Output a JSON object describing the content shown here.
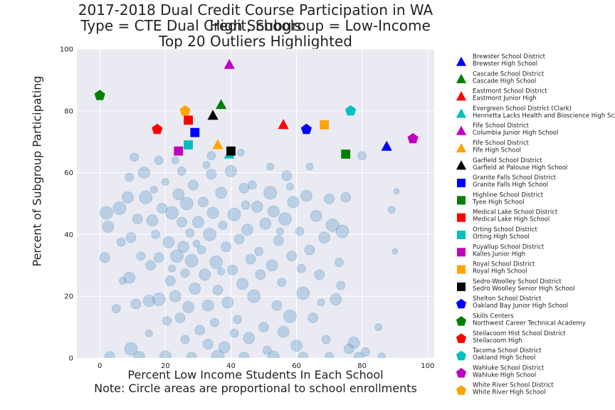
{
  "chart_data": {
    "type": "scatter",
    "title": [
      "2017-2018 Dual Credit Course Participation in WA High Schools",
      "Type = CTE Dual Credit, Subgroup = Low-Income",
      "Top 20 Outliers Highlighted"
    ],
    "xlabel": [
      "Percent Low Income Students In Each School",
      "Note: Circle areas are proportional to school enrollments"
    ],
    "ylabel": "Percent of Subgroup Participating",
    "xlim": [
      -7,
      102
    ],
    "ylim": [
      0,
      100
    ],
    "xticks": [
      "0",
      "20",
      "40",
      "60",
      "80",
      "100"
    ],
    "yticks": [
      "0",
      "20",
      "40",
      "60",
      "80",
      "100"
    ],
    "grid": true,
    "background": "#eaeaf2",
    "bubble_color": "#4c92c3",
    "legend_position": "outside-right",
    "highlighted": [
      {
        "district": "Brewster School District",
        "school": "Brewster High School",
        "marker": "triangle",
        "color": "#0000ff",
        "x": 87.5,
        "y": 68.5
      },
      {
        "district": "Cascade School District",
        "school": "Cascade High School",
        "marker": "triangle",
        "color": "#008000",
        "x": 37.0,
        "y": 82.0
      },
      {
        "district": "Eastmont School District",
        "school": "Eastmont Junior High",
        "marker": "triangle",
        "color": "#ff0000",
        "x": 56.0,
        "y": 75.5
      },
      {
        "district": "Evergreen School District (Clark)",
        "school": "Henrietta Lacks Health and Bioscience High School",
        "marker": "triangle",
        "color": "#00bfbf",
        "x": 39.5,
        "y": 66.0
      },
      {
        "district": "Fife School District",
        "school": "Columbia Junior High School",
        "marker": "triangle",
        "color": "#bf00bf",
        "x": 39.5,
        "y": 95.0
      },
      {
        "district": "Fife School District",
        "school": "Fife High School",
        "marker": "triangle",
        "color": "#ffa500",
        "x": 36.0,
        "y": 69.0
      },
      {
        "district": "Garfield School District",
        "school": "Garfield at Palouse High School",
        "marker": "triangle",
        "color": "#000000",
        "x": 34.5,
        "y": 78.5
      },
      {
        "district": "Granite Falls School District",
        "school": "Granite Falls High School",
        "marker": "square",
        "color": "#0000ff",
        "x": 29.0,
        "y": 73.0
      },
      {
        "district": "Highline School District",
        "school": "Tyee High School",
        "marker": "square",
        "color": "#008000",
        "x": 75.0,
        "y": 66.0
      },
      {
        "district": "Medical Lake School District",
        "school": "Medical Lake High School",
        "marker": "square",
        "color": "#ff0000",
        "x": 27.0,
        "y": 77.0
      },
      {
        "district": "Orting School District",
        "school": "Orting High School",
        "marker": "square",
        "color": "#00bfbf",
        "x": 27.0,
        "y": 69.0
      },
      {
        "district": "Puyallup School District",
        "school": "Kalles Junior High",
        "marker": "square",
        "color": "#bf00bf",
        "x": 24.0,
        "y": 67.0
      },
      {
        "district": "Royal School District",
        "school": "Royal High School",
        "marker": "square",
        "color": "#ffa500",
        "x": 68.5,
        "y": 75.5
      },
      {
        "district": "Sedro-Woolley School District",
        "school": "Sedro Woolley Senior High School",
        "marker": "square",
        "color": "#000000",
        "x": 40.0,
        "y": 67.0
      },
      {
        "district": "Shelton School District",
        "school": "Oakland Bay Junior High School",
        "marker": "pentagon",
        "color": "#0000ff",
        "x": 63.0,
        "y": 74.0
      },
      {
        "district": "Skills Centers",
        "school": "Northwest Career   Technical Academy",
        "marker": "pentagon",
        "color": "#008000",
        "x": 0.0,
        "y": 85.0
      },
      {
        "district": "Steilacoom Hist School District",
        "school": "Steilacoom High",
        "marker": "pentagon",
        "color": "#ff0000",
        "x": 17.5,
        "y": 74.0
      },
      {
        "district": "Tacoma School District",
        "school": "Oakland High School",
        "marker": "pentagon",
        "color": "#00bfbf",
        "x": 76.5,
        "y": 80.0
      },
      {
        "district": "Wahluke School District",
        "school": "Wahluke High School",
        "marker": "pentagon",
        "color": "#bf00bf",
        "x": 95.5,
        "y": 71.0
      },
      {
        "district": "White River School District",
        "school": "White River High School",
        "marker": "pentagon",
        "color": "#ffa500",
        "x": 26.0,
        "y": 80.0
      }
    ],
    "background_points": [
      {
        "x": 2.0,
        "y": 47.0,
        "s": 9
      },
      {
        "x": 2.5,
        "y": 42.5,
        "s": 8
      },
      {
        "x": 1.5,
        "y": 32.5,
        "s": 7
      },
      {
        "x": 6.0,
        "y": 48.5,
        "s": 9
      },
      {
        "x": 6.5,
        "y": 37.5,
        "s": 6
      },
      {
        "x": 7.0,
        "y": 25.0,
        "s": 5
      },
      {
        "x": 8.5,
        "y": 52.0,
        "s": 8
      },
      {
        "x": 9.0,
        "y": 58.5,
        "s": 6
      },
      {
        "x": 9.5,
        "y": 39.0,
        "s": 7
      },
      {
        "x": 9.0,
        "y": 26.0,
        "s": 8
      },
      {
        "x": 9.5,
        "y": 3.0,
        "s": 9
      },
      {
        "x": 10.5,
        "y": 65.0,
        "s": 6
      },
      {
        "x": 11.5,
        "y": 45.0,
        "s": 7
      },
      {
        "x": 12.5,
        "y": 33.0,
        "s": 6
      },
      {
        "x": 13.5,
        "y": 60.0,
        "s": 8
      },
      {
        "x": 14.0,
        "y": 52.0,
        "s": 9
      },
      {
        "x": 15.0,
        "y": 18.5,
        "s": 8
      },
      {
        "x": 15.5,
        "y": 30.0,
        "s": 7
      },
      {
        "x": 16.0,
        "y": 44.5,
        "s": 8
      },
      {
        "x": 17.0,
        "y": 40.0,
        "s": 6
      },
      {
        "x": 18.0,
        "y": 19.0,
        "s": 9
      },
      {
        "x": 18.0,
        "y": 32.5,
        "s": 7
      },
      {
        "x": 19.0,
        "y": 48.5,
        "s": 7
      },
      {
        "x": 20.0,
        "y": 57.0,
        "s": 5
      },
      {
        "x": 20.5,
        "y": 12.0,
        "s": 6
      },
      {
        "x": 21.0,
        "y": 37.5,
        "s": 8
      },
      {
        "x": 21.5,
        "y": 25.0,
        "s": 7
      },
      {
        "x": 22.0,
        "y": 47.0,
        "s": 9
      },
      {
        "x": 23.0,
        "y": 20.0,
        "s": 8
      },
      {
        "x": 23.5,
        "y": 33.0,
        "s": 9
      },
      {
        "x": 24.0,
        "y": 53.0,
        "s": 8
      },
      {
        "x": 24.5,
        "y": 13.0,
        "s": 7
      },
      {
        "x": 25.0,
        "y": 44.0,
        "s": 7
      },
      {
        "x": 25.5,
        "y": 36.0,
        "s": 8
      },
      {
        "x": 26.0,
        "y": 27.5,
        "s": 6
      },
      {
        "x": 26.5,
        "y": 50.0,
        "s": 9
      },
      {
        "x": 27.0,
        "y": 16.5,
        "s": 8
      },
      {
        "x": 27.5,
        "y": 40.5,
        "s": 6
      },
      {
        "x": 28.0,
        "y": 31.5,
        "s": 9
      },
      {
        "x": 28.5,
        "y": 56.0,
        "s": 7
      },
      {
        "x": 29.0,
        "y": 22.5,
        "s": 8
      },
      {
        "x": 30.0,
        "y": 44.0,
        "s": 8
      },
      {
        "x": 30.5,
        "y": 9.0,
        "s": 7
      },
      {
        "x": 31.0,
        "y": 35.0,
        "s": 6
      },
      {
        "x": 31.5,
        "y": 50.5,
        "s": 7
      },
      {
        "x": 32.0,
        "y": 27.0,
        "s": 8
      },
      {
        "x": 33.0,
        "y": 17.0,
        "s": 8
      },
      {
        "x": 33.5,
        "y": 40.0,
        "s": 9
      },
      {
        "x": 34.0,
        "y": 59.5,
        "s": 7
      },
      {
        "x": 34.5,
        "y": 47.0,
        "s": 8
      },
      {
        "x": 35.0,
        "y": 11.5,
        "s": 6
      },
      {
        "x": 35.5,
        "y": 31.0,
        "s": 9
      },
      {
        "x": 36.0,
        "y": 22.0,
        "s": 7
      },
      {
        "x": 37.0,
        "y": 53.5,
        "s": 8
      },
      {
        "x": 37.5,
        "y": 43.0,
        "s": 6
      },
      {
        "x": 38.0,
        "y": 3.5,
        "s": 8
      },
      {
        "x": 38.5,
        "y": 36.0,
        "s": 7
      },
      {
        "x": 39.0,
        "y": 18.0,
        "s": 8
      },
      {
        "x": 40.0,
        "y": 60.5,
        "s": 8
      },
      {
        "x": 40.5,
        "y": 28.5,
        "s": 7
      },
      {
        "x": 41.0,
        "y": 46.5,
        "s": 9
      },
      {
        "x": 42.0,
        "y": 12.5,
        "s": 6
      },
      {
        "x": 42.5,
        "y": 38.5,
        "s": 7
      },
      {
        "x": 43.5,
        "y": 24.0,
        "s": 8
      },
      {
        "x": 44.0,
        "y": 55.0,
        "s": 7
      },
      {
        "x": 45.0,
        "y": 41.5,
        "s": 8
      },
      {
        "x": 45.5,
        "y": 6.5,
        "s": 8
      },
      {
        "x": 46.0,
        "y": 32.0,
        "s": 7
      },
      {
        "x": 47.0,
        "y": 20.0,
        "s": 9
      },
      {
        "x": 48.0,
        "y": 49.0,
        "s": 8
      },
      {
        "x": 48.5,
        "y": 34.5,
        "s": 6
      },
      {
        "x": 49.0,
        "y": 27.0,
        "s": 7
      },
      {
        "x": 50.0,
        "y": 10.0,
        "s": 7
      },
      {
        "x": 50.5,
        "y": 43.5,
        "s": 8
      },
      {
        "x": 51.0,
        "y": 2.5,
        "s": 6
      },
      {
        "x": 52.0,
        "y": 53.5,
        "s": 9
      },
      {
        "x": 52.5,
        "y": 30.0,
        "s": 8
      },
      {
        "x": 53.0,
        "y": 47.5,
        "s": 8
      },
      {
        "x": 54.0,
        "y": 17.0,
        "s": 7
      },
      {
        "x": 54.5,
        "y": 38.0,
        "s": 7
      },
      {
        "x": 55.5,
        "y": 24.5,
        "s": 6
      },
      {
        "x": 56.0,
        "y": 8.5,
        "s": 8
      },
      {
        "x": 56.5,
        "y": 45.0,
        "s": 9
      },
      {
        "x": 57.0,
        "y": 59.0,
        "s": 7
      },
      {
        "x": 58.0,
        "y": 13.5,
        "s": 9
      },
      {
        "x": 58.5,
        "y": 33.0,
        "s": 7
      },
      {
        "x": 59.0,
        "y": 50.5,
        "s": 8
      },
      {
        "x": 60.0,
        "y": 4.0,
        "s": 8
      },
      {
        "x": 61.0,
        "y": 41.0,
        "s": 6
      },
      {
        "x": 62.0,
        "y": 21.0,
        "s": 9
      },
      {
        "x": 63.0,
        "y": 52.5,
        "s": 8
      },
      {
        "x": 64.0,
        "y": 35.0,
        "s": 7
      },
      {
        "x": 65.0,
        "y": 13.0,
        "s": 7
      },
      {
        "x": 66.0,
        "y": 46.0,
        "s": 8
      },
      {
        "x": 67.0,
        "y": 27.0,
        "s": 7
      },
      {
        "x": 68.5,
        "y": 39.0,
        "s": 8
      },
      {
        "x": 69.0,
        "y": 6.0,
        "s": 6
      },
      {
        "x": 70.0,
        "y": 51.5,
        "s": 7
      },
      {
        "x": 71.0,
        "y": 43.0,
        "s": 9
      },
      {
        "x": 72.0,
        "y": 19.0,
        "s": 8
      },
      {
        "x": 73.0,
        "y": 31.0,
        "s": 6
      },
      {
        "x": 74.0,
        "y": 41.0,
        "s": 9
      },
      {
        "x": 75.0,
        "y": 52.0,
        "s": 7
      },
      {
        "x": 76.0,
        "y": 3.0,
        "s": 7
      },
      {
        "x": 77.5,
        "y": 5.0,
        "s": 8
      },
      {
        "x": 80.0,
        "y": 65.5,
        "s": 6
      },
      {
        "x": 81.0,
        "y": 2.0,
        "s": 6
      },
      {
        "x": 85.0,
        "y": 10.0,
        "s": 5
      },
      {
        "x": 89.0,
        "y": 48.0,
        "s": 5
      },
      {
        "x": 90.5,
        "y": 54.0,
        "s": 4
      },
      {
        "x": 90.0,
        "y": 34.5,
        "s": 4
      },
      {
        "x": 18.0,
        "y": 64.0,
        "s": 6
      },
      {
        "x": 23.0,
        "y": 64.0,
        "s": 5
      },
      {
        "x": 34.0,
        "y": 65.5,
        "s": 6
      },
      {
        "x": 43.0,
        "y": 66.5,
        "s": 5
      },
      {
        "x": 52.0,
        "y": 62.0,
        "s": 5
      },
      {
        "x": 64.0,
        "y": 62.0,
        "s": 5
      },
      {
        "x": 3.0,
        "y": 0.5,
        "s": 7
      },
      {
        "x": 12.0,
        "y": 0.3,
        "s": 8
      },
      {
        "x": 20.0,
        "y": 0.5,
        "s": 8
      },
      {
        "x": 28.0,
        "y": 0.3,
        "s": 7
      },
      {
        "x": 36.0,
        "y": 0.5,
        "s": 9
      },
      {
        "x": 44.0,
        "y": 0.3,
        "s": 7
      },
      {
        "x": 53.0,
        "y": 0.5,
        "s": 8
      },
      {
        "x": 62.0,
        "y": 0.3,
        "s": 7
      },
      {
        "x": 70.0,
        "y": 0.5,
        "s": 6
      },
      {
        "x": 79.0,
        "y": 0.3,
        "s": 7
      },
      {
        "x": 86.0,
        "y": 0.5,
        "s": 5
      },
      {
        "x": 15.0,
        "y": 8.0,
        "s": 5
      },
      {
        "x": 26.0,
        "y": 6.0,
        "s": 6
      },
      {
        "x": 33.0,
        "y": 4.5,
        "s": 7
      },
      {
        "x": 41.0,
        "y": 8.0,
        "s": 6
      },
      {
        "x": 5.0,
        "y": 16.0,
        "s": 6
      },
      {
        "x": 11.0,
        "y": 17.5,
        "s": 7
      },
      {
        "x": 22.0,
        "y": 29.0,
        "s": 5
      },
      {
        "x": 29.5,
        "y": 37.0,
        "s": 5
      },
      {
        "x": 37.0,
        "y": 28.0,
        "s": 5
      },
      {
        "x": 46.5,
        "y": 56.0,
        "s": 6
      },
      {
        "x": 55.0,
        "y": 41.0,
        "s": 5
      },
      {
        "x": 61.5,
        "y": 29.0,
        "s": 6
      },
      {
        "x": 67.5,
        "y": 18.0,
        "s": 5
      },
      {
        "x": 73.5,
        "y": 23.5,
        "s": 6
      },
      {
        "x": 32.5,
        "y": 62.5,
        "s": 5
      },
      {
        "x": 25.0,
        "y": 60.5,
        "s": 6
      },
      {
        "x": 16.5,
        "y": 54.5,
        "s": 5
      },
      {
        "x": 44.5,
        "y": 49.5,
        "s": 6
      },
      {
        "x": 58.0,
        "y": 55.5,
        "s": 5
      }
    ]
  }
}
